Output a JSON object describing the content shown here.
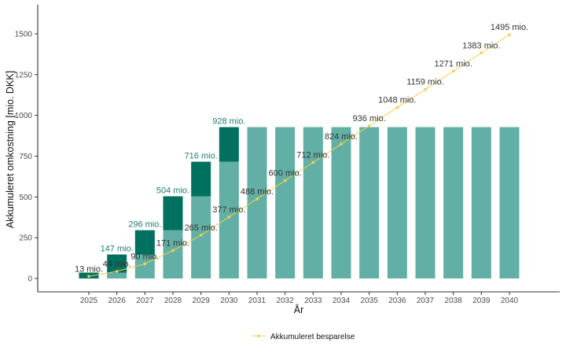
{
  "chart_data": {
    "type": "bar",
    "title": "",
    "xlabel": "År",
    "ylabel": "Akkumuleret omkostning [mio. DKK]",
    "ylim": [
      -75,
      1680
    ],
    "yticks": [
      0,
      250,
      500,
      750,
      1000,
      1250,
      1500
    ],
    "grid": false,
    "categories": [
      "2025",
      "2026",
      "2027",
      "2028",
      "2029",
      "2030",
      "2031",
      "2032",
      "2033",
      "2034",
      "2035",
      "2036",
      "2037",
      "2038",
      "2039",
      "2040"
    ],
    "stacked_bars": {
      "previous_cumulative": [
        0,
        36,
        147,
        296,
        504,
        716,
        928,
        928,
        928,
        928,
        928,
        928,
        928,
        928,
        928,
        928
      ],
      "new_this_year": [
        36,
        111,
        149,
        208,
        212,
        212,
        0,
        0,
        0,
        0,
        0,
        0,
        0,
        0,
        0,
        0
      ],
      "total_labels": [
        "",
        "147 mio.",
        "296 mio.",
        "504 mio.",
        "716 mio.",
        "928 mio.",
        "",
        "",
        "",
        "",
        "",
        "",
        "",
        "",
        "",
        ""
      ]
    },
    "series": [
      {
        "name": "Akkumuleret besparelse",
        "type": "line",
        "values": [
          13,
          44,
          90,
          171,
          265,
          377,
          488,
          600,
          712,
          824,
          936,
          1048,
          1159,
          1271,
          1383,
          1495
        ],
        "labels": [
          "13 mio.",
          "44 mio.",
          "90 mio.",
          "171 mio.",
          "265 mio.",
          "377 mio.",
          "488 mio.",
          "600 mio.",
          "712 mio.",
          "824 mio.",
          "936 mio.",
          "1048 mio.",
          "1159 mio.",
          "1271 mio.",
          "1383 mio.",
          "1495 mio."
        ]
      }
    ],
    "legend_position": "bottom",
    "colors": {
      "previous": "#62b0a5",
      "new": "#00705f",
      "line": "#f5cf50",
      "bar_label": "#1e7d72"
    }
  }
}
